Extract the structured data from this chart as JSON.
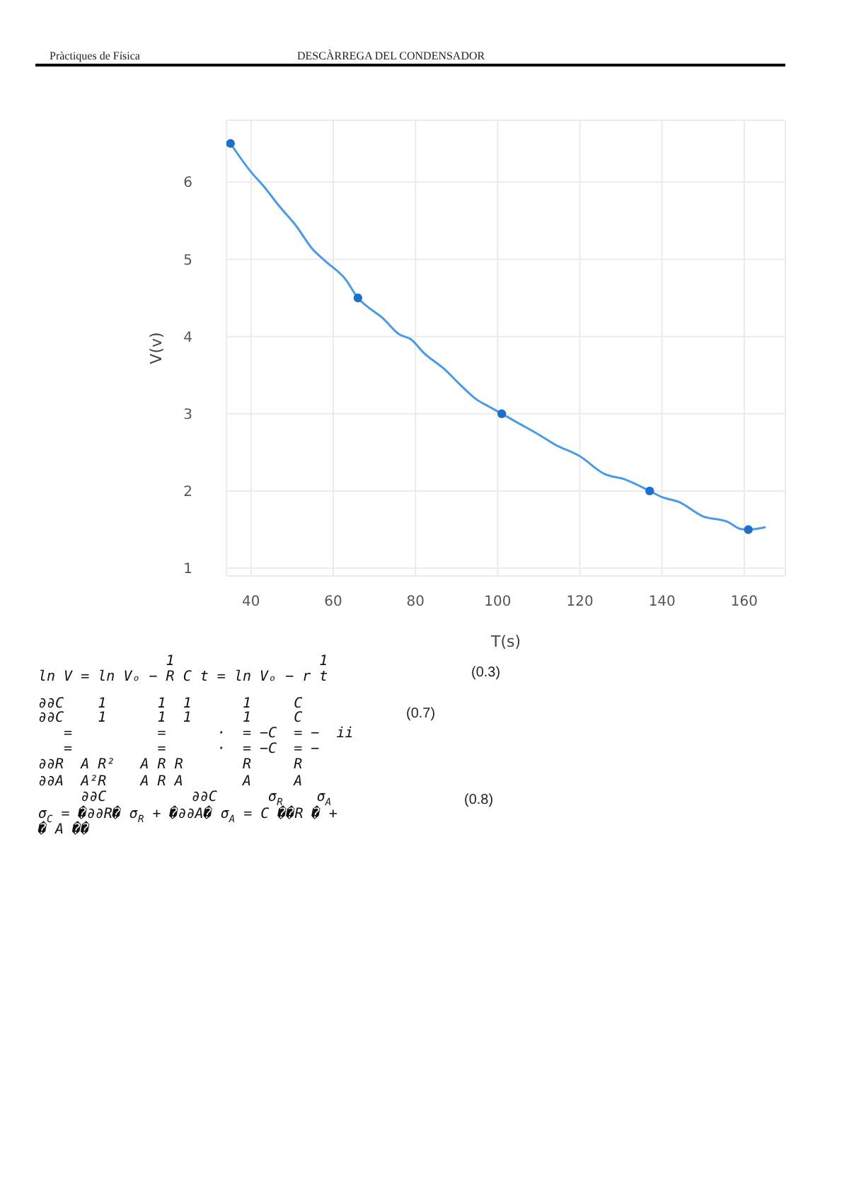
{
  "chart_data": {
    "type": "line",
    "xlabel": "T(s)",
    "ylabel": "V(v)",
    "xlim": [
      34,
      170
    ],
    "ylim": [
      0.9,
      6.8
    ],
    "xticks": [
      40,
      60,
      80,
      100,
      120,
      140,
      160
    ],
    "yticks": [
      1,
      2,
      3,
      4,
      5,
      6
    ],
    "grid": true,
    "marker": "circle",
    "series": [
      {
        "color": "#4a9ae8",
        "marker": "none",
        "x": [
          35,
          40,
          43,
          47,
          51,
          55,
          58,
          63,
          66,
          68,
          72,
          76,
          79,
          82,
          87,
          91,
          95,
          98,
          101,
          105,
          110,
          114,
          120,
          126,
          131,
          137,
          140,
          144,
          150,
          156,
          159,
          161,
          165
        ],
        "values": [
          6.5,
          6.13,
          5.95,
          5.68,
          5.43,
          5.13,
          4.98,
          4.74,
          4.5,
          4.4,
          4.24,
          4.03,
          3.96,
          3.79,
          3.58,
          3.37,
          3.18,
          3.09,
          3.0,
          2.88,
          2.73,
          2.6,
          2.45,
          2.22,
          2.15,
          2.0,
          1.92,
          1.86,
          1.67,
          1.6,
          1.51,
          1.5,
          1.53
        ]
      },
      {
        "type": "scatter",
        "color": "#1e6fc8",
        "x": [
          35,
          66,
          101,
          137,
          161
        ],
        "values": [
          6.5,
          4.5,
          3.0,
          2.0,
          1.5
        ]
      }
    ],
    "annotations": [
      "Pràctiques de Física",
      "DESCÀRREGA DEL CONDENSADOR",
      "               1                 1",
      "ln V = ln Vₒ − R C t = ln Vₒ − r t",
      "∂∂C    1      1  1      1     C",
      "∂∂C    1      1  1      1     C",
      "   =          =      ·  = −C  = −  ii",
      "   =          =      ·  = −C  = −",
      "∂∂R  A R²   A R R       R     R",
      "∂∂A  A²R    A R A       A     A",
      "     ∂∂C          ∂∂C      σ$_{R}$    σ$_{A}$",
      "σ$_{C}$ = �∂∂R� σ$_{R}$ + �∂∂A� σ$_{A}$ = C ��R � +",
      "� A ��",
      "(0.3)",
      "(0.7)",
      "(0.8)"
    ]
  }
}
